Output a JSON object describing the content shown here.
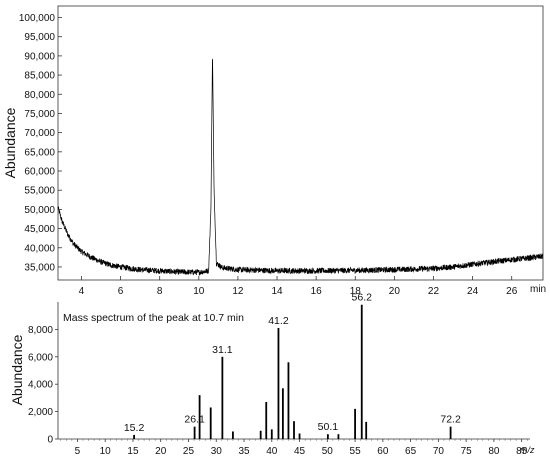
{
  "chart_data": [
    {
      "type": "line",
      "title": "",
      "ylabel": "Abundance",
      "xlabel": "min",
      "xlim": [
        2.8,
        27.6
      ],
      "ylim": [
        31600,
        103000
      ],
      "x_ticks": [
        4,
        6,
        8,
        10,
        12,
        14,
        16,
        18,
        20,
        22,
        24,
        26
      ],
      "y_ticks": [
        35000,
        40000,
        45000,
        50000,
        55000,
        60000,
        65000,
        70000,
        75000,
        80000,
        85000,
        90000,
        95000,
        100000
      ],
      "x_tick_labels": [
        "4",
        "6",
        "8",
        "10",
        "12",
        "14",
        "16",
        "18",
        "20",
        "22",
        "24",
        "26"
      ],
      "y_tick_labels": [
        "35,000",
        "40,000",
        "45,000",
        "50,000",
        "55,000",
        "60,000",
        "65,000",
        "70,000",
        "75,000",
        "80,000",
        "85,000",
        "90,000",
        "95,000",
        "100,000"
      ],
      "grid": false,
      "series": [
        {
          "x": [
            2.8,
            3.0,
            3.3,
            3.6,
            4.0,
            4.5,
            5.0,
            5.5,
            6.0,
            7.0,
            8.0,
            9.0,
            10.0,
            10.5,
            10.62,
            10.7,
            10.78,
            10.9,
            11.2,
            12.0,
            14.0,
            16.0,
            18.0,
            20.0,
            22.0,
            23.0,
            24.0,
            25.0,
            26.0,
            27.0,
            27.6
          ],
          "y": [
            50500,
            47000,
            43500,
            41000,
            39000,
            37500,
            36300,
            35500,
            35000,
            34300,
            34000,
            33700,
            33600,
            34000,
            50000,
            91500,
            55000,
            36000,
            34800,
            34300,
            34000,
            34000,
            34100,
            34300,
            34600,
            35000,
            35700,
            36300,
            36900,
            37400,
            37800
          ]
        }
      ]
    },
    {
      "type": "bar",
      "title": "Mass spectrum of the peak at 10.7 min",
      "ylabel": "Abundance",
      "xlabel": "m/z",
      "xlim": [
        1.5,
        86.5
      ],
      "ylim": [
        0,
        10000
      ],
      "x_ticks": [
        5,
        10,
        15,
        20,
        25,
        30,
        35,
        40,
        45,
        50,
        55,
        60,
        65,
        70,
        75,
        80,
        85
      ],
      "y_ticks": [
        0,
        2000,
        4000,
        6000,
        8000
      ],
      "x_tick_labels": [
        "5",
        "10",
        "15",
        "20",
        "25",
        "30",
        "35",
        "40",
        "45",
        "50",
        "55",
        "60",
        "65",
        "70",
        "75",
        "80",
        "85"
      ],
      "y_tick_labels": [
        "0",
        "2,000",
        "4,000",
        "6,000",
        "8,000"
      ],
      "grid": false,
      "mz": [
        15.2,
        26.1,
        27.0,
        29.0,
        31.1,
        33.0,
        38.0,
        39.0,
        40.0,
        41.2,
        42.0,
        43.0,
        44.0,
        45.0,
        50.1,
        52.0,
        55.0,
        56.2,
        57.0,
        72.2
      ],
      "values": [
        300,
        900,
        3200,
        2300,
        6000,
        550,
        600,
        2700,
        700,
        8100,
        3700,
        5600,
        1300,
        400,
        350,
        350,
        2200,
        9800,
        1250,
        900
      ],
      "peak_labels": [
        {
          "mz": 15.2,
          "text": "15.2",
          "y": 300
        },
        {
          "mz": 26.1,
          "text": "26.1",
          "y": 900
        },
        {
          "mz": 31.1,
          "text": "31.1",
          "y": 6000
        },
        {
          "mz": 41.2,
          "text": "41.2",
          "y": 8100
        },
        {
          "mz": 50.1,
          "text": "50.1",
          "y": 350
        },
        {
          "mz": 56.2,
          "text": "56.2",
          "y": 9800
        },
        {
          "mz": 72.2,
          "text": "72.2",
          "y": 900
        }
      ]
    }
  ]
}
